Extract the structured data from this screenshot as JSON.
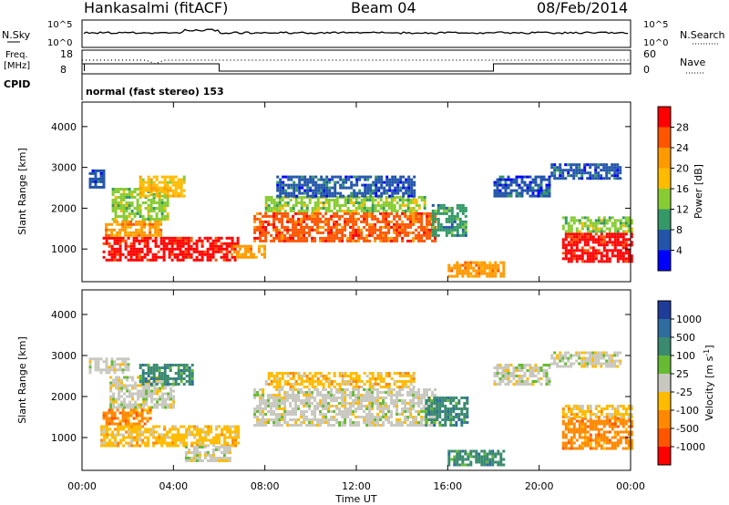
{
  "header": {
    "station": "Hankasalmi (fitACF)",
    "beam": "Beam 04",
    "date": "08/Feb/2014"
  },
  "top_panels": {
    "nsky_label": "N.Sky",
    "nsky_ticks": [
      "10^5",
      "10^0"
    ],
    "nsearch_label": "N.Search",
    "nsearch_ticks": [
      "10^5",
      "10^0"
    ],
    "freq_label": "Freq.",
    "freq_unit": "[MHz]",
    "freq_ticks": [
      "18",
      "8"
    ],
    "nave_label": "Nave",
    "nave_ticks": [
      "60",
      "0"
    ],
    "cpid_label": "CPID",
    "cpid_text": "normal (fast stereo) 153"
  },
  "chart_data": [
    {
      "type": "heatmap",
      "name": "power-panel",
      "ylabel": "Slant Range [km]",
      "ylim": [
        200,
        4600
      ],
      "xlim": [
        0,
        24
      ],
      "yticks": [
        1000,
        2000,
        3000,
        4000
      ],
      "colorbar_label": "Power [dB]",
      "colorbar_ticks": [
        "28",
        "24",
        "20",
        "16",
        "12",
        "8",
        "4"
      ],
      "colorbar_colors": [
        "#ff0000",
        "#ff5500",
        "#ff9900",
        "#ffbb00",
        "#88cc33",
        "#339966",
        "#2255aa",
        "#0000ff"
      ],
      "bands": [
        {
          "x0": 0.3,
          "x1": 1.0,
          "r0": 2500,
          "r1": 2950,
          "level": 1
        },
        {
          "x0": 0.9,
          "x1": 6.8,
          "r0": 750,
          "r1": 1300,
          "level": 7
        },
        {
          "x0": 1.0,
          "x1": 3.5,
          "r0": 1300,
          "r1": 1700,
          "level": 5
        },
        {
          "x0": 1.3,
          "x1": 3.8,
          "r0": 1700,
          "r1": 2500,
          "level": 3
        },
        {
          "x0": 2.5,
          "x1": 4.5,
          "r0": 2300,
          "r1": 2800,
          "level": 4
        },
        {
          "x0": 6.5,
          "x1": 8.0,
          "r0": 800,
          "r1": 1100,
          "level": 5
        },
        {
          "x0": 7.5,
          "x1": 15.5,
          "r0": 1200,
          "r1": 1900,
          "level": 6
        },
        {
          "x0": 8.0,
          "x1": 15.0,
          "r0": 1900,
          "r1": 2300,
          "level": 3
        },
        {
          "x0": 8.5,
          "x1": 14.5,
          "r0": 2300,
          "r1": 2800,
          "level": 1
        },
        {
          "x0": 15.3,
          "x1": 16.8,
          "r0": 1300,
          "r1": 2100,
          "level": 2
        },
        {
          "x0": 16.0,
          "x1": 18.5,
          "r0": 300,
          "r1": 700,
          "level": 5
        },
        {
          "x0": 18.0,
          "x1": 20.5,
          "r0": 2300,
          "r1": 2800,
          "level": 1
        },
        {
          "x0": 20.5,
          "x1": 23.5,
          "r0": 2700,
          "r1": 3100,
          "level": 1
        },
        {
          "x0": 21.0,
          "x1": 24.0,
          "r0": 700,
          "r1": 1400,
          "level": 7
        },
        {
          "x0": 21.0,
          "x1": 24.0,
          "r0": 1400,
          "r1": 1800,
          "level": 3
        }
      ]
    },
    {
      "type": "heatmap",
      "name": "velocity-panel",
      "xlabel": "Time UT",
      "ylabel": "Slant Range [km]",
      "ylim": [
        200,
        4600
      ],
      "xlim": [
        0,
        24
      ],
      "xticks": [
        "00:00",
        "04:00",
        "08:00",
        "12:00",
        "16:00",
        "20:00",
        "00:00"
      ],
      "yticks": [
        1000,
        2000,
        3000,
        4000
      ],
      "colorbar_label": "Velocity [m s-1]",
      "colorbar_ticks": [
        "1000",
        "500",
        "100",
        "25",
        "-25",
        "-100",
        "-500",
        "-1000"
      ],
      "colorbar_colors": [
        "#1f3c99",
        "#2f6c9f",
        "#3a8a70",
        "#66bb33",
        "#c8c8c0",
        "#ffbb00",
        "#ff8800",
        "#ff5500",
        "#ff0000"
      ],
      "bands": [
        {
          "x0": 0.3,
          "x1": 2.0,
          "r0": 2600,
          "r1": 2950,
          "level": 4
        },
        {
          "x0": 0.8,
          "x1": 6.8,
          "r0": 800,
          "r1": 1300,
          "level": 3
        },
        {
          "x0": 0.9,
          "x1": 3.0,
          "r0": 1300,
          "r1": 1700,
          "level": 2
        },
        {
          "x0": 1.2,
          "x1": 4.0,
          "r0": 1700,
          "r1": 2500,
          "level": 4
        },
        {
          "x0": 2.5,
          "x1": 4.8,
          "r0": 2300,
          "r1": 2800,
          "level": 6
        },
        {
          "x0": 4.5,
          "x1": 6.5,
          "r0": 400,
          "r1": 800,
          "level": 4
        },
        {
          "x0": 7.5,
          "x1": 15.5,
          "r0": 1300,
          "r1": 2200,
          "level": 4
        },
        {
          "x0": 8.0,
          "x1": 14.5,
          "r0": 2200,
          "r1": 2600,
          "level": 3
        },
        {
          "x0": 15.0,
          "x1": 16.8,
          "r0": 1300,
          "r1": 2000,
          "level": 6
        },
        {
          "x0": 16.0,
          "x1": 18.5,
          "r0": 300,
          "r1": 700,
          "level": 6
        },
        {
          "x0": 18.0,
          "x1": 20.5,
          "r0": 2300,
          "r1": 2800,
          "level": 4
        },
        {
          "x0": 20.5,
          "x1": 23.5,
          "r0": 2700,
          "r1": 3100,
          "level": 4
        },
        {
          "x0": 21.0,
          "x1": 24.0,
          "r0": 700,
          "r1": 1500,
          "level": 2
        },
        {
          "x0": 21.0,
          "x1": 24.0,
          "r0": 1500,
          "r1": 1800,
          "level": 3
        }
      ]
    }
  ]
}
